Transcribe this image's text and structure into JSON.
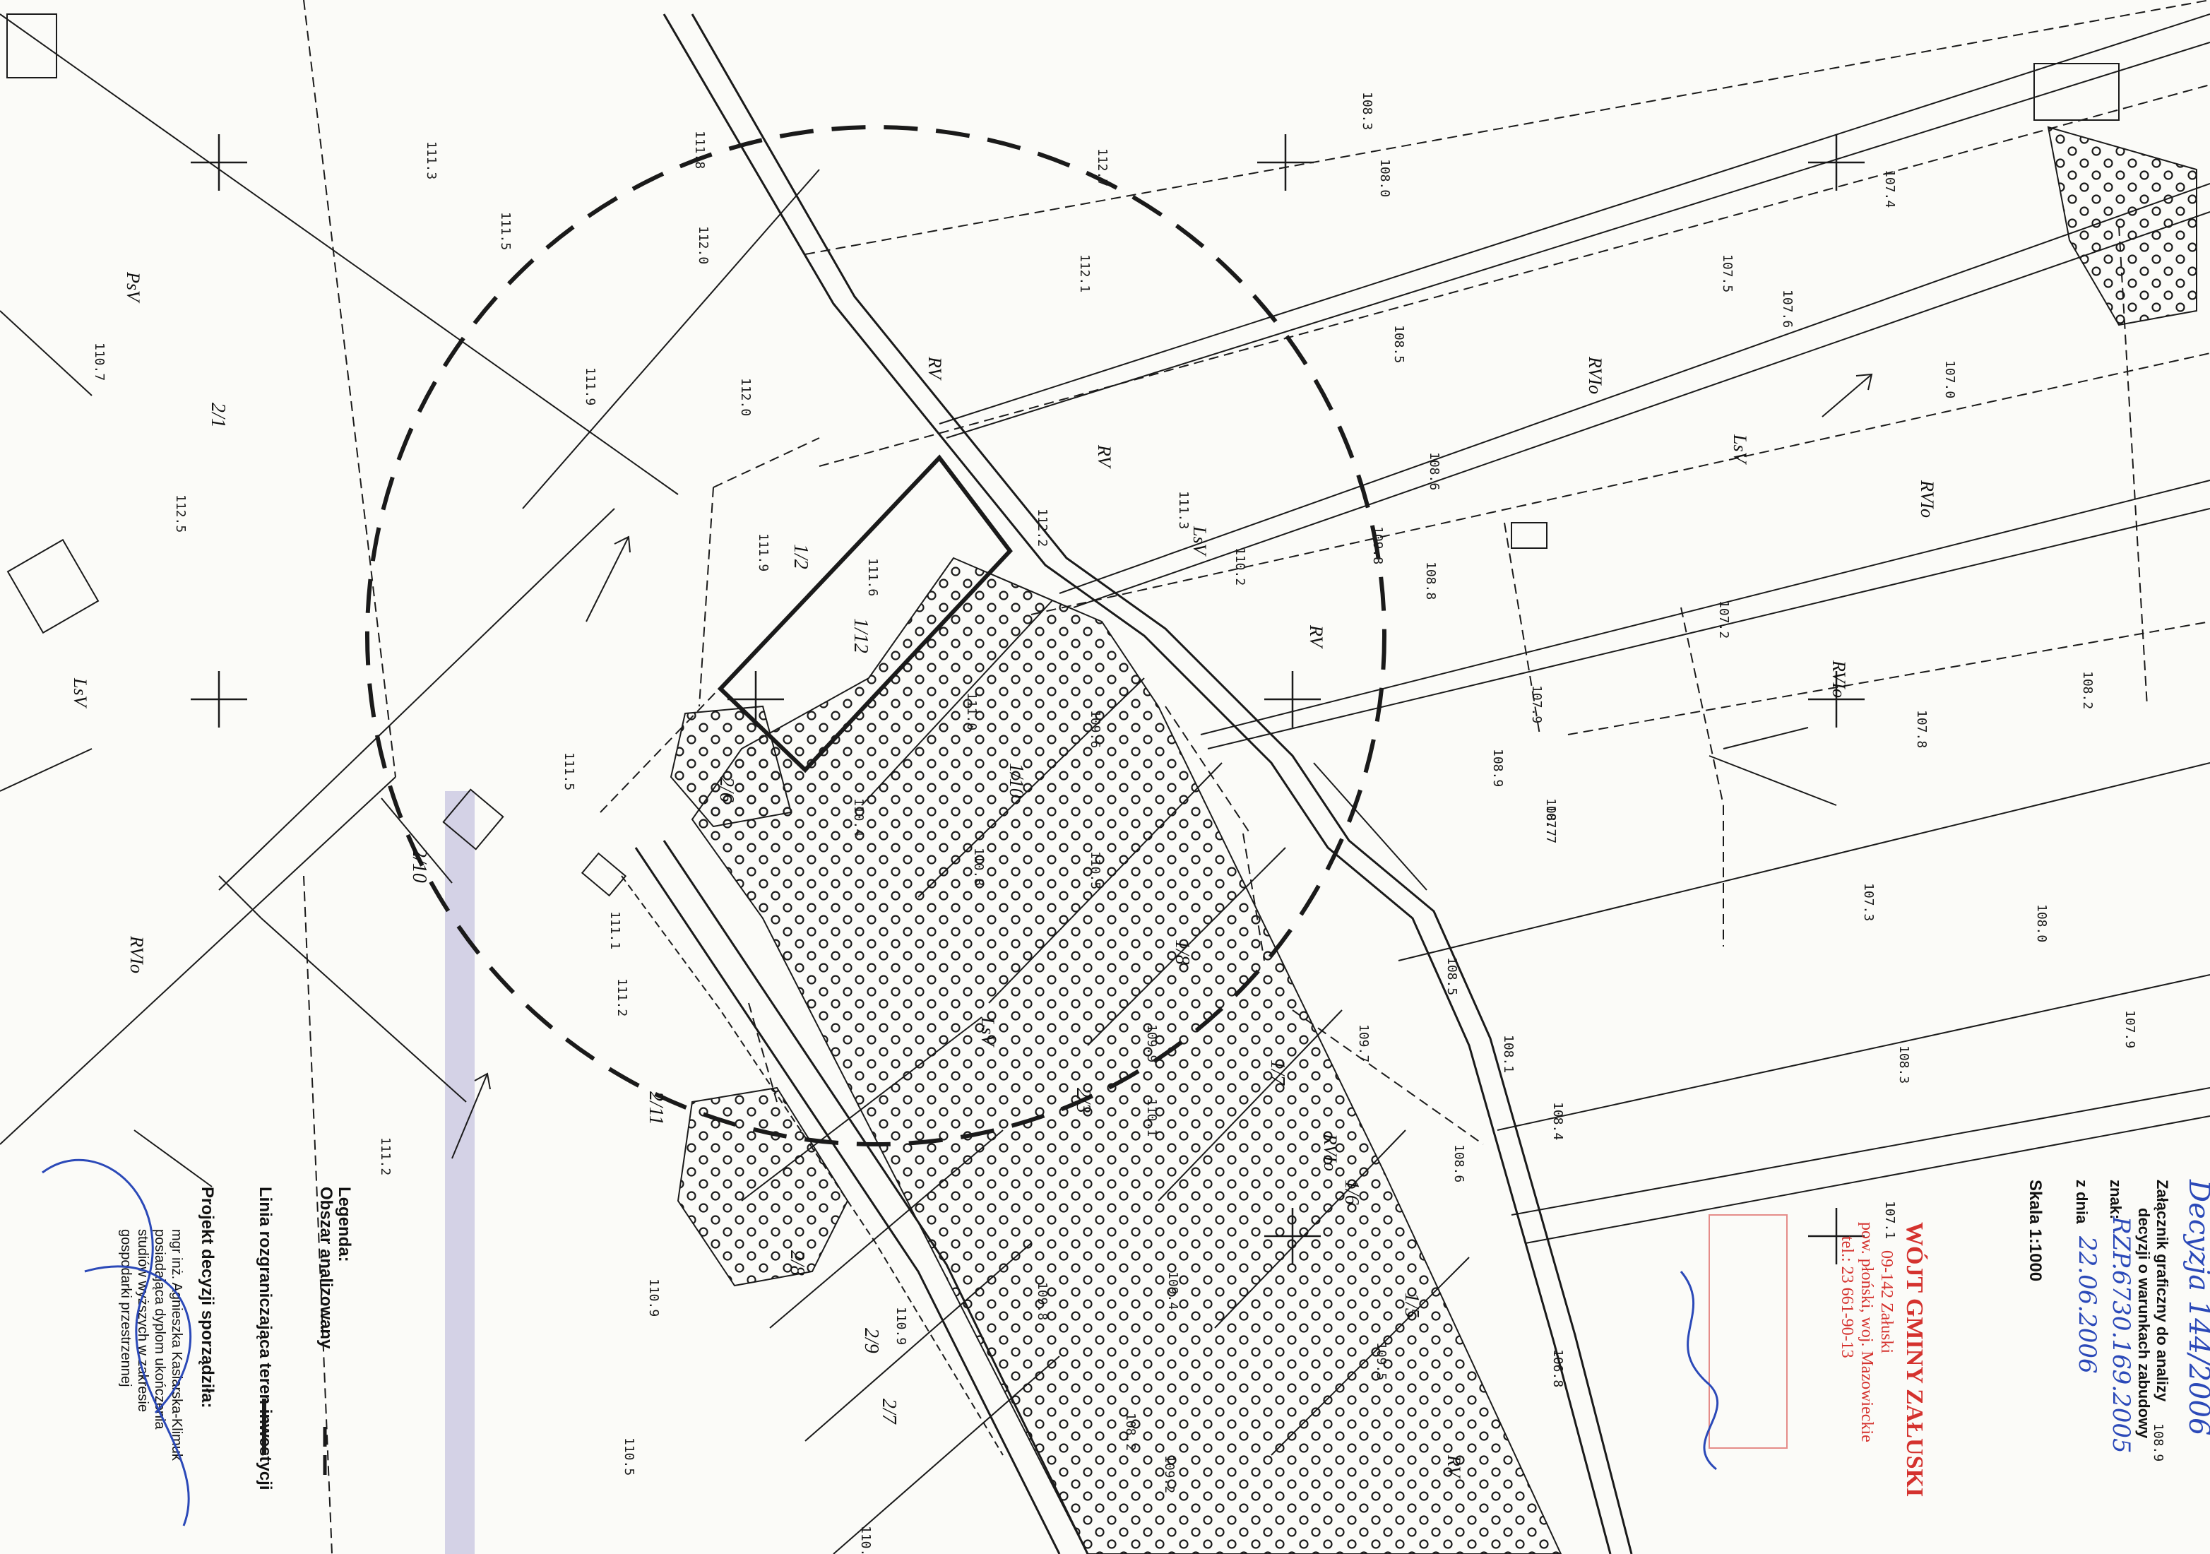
{
  "colors": {
    "ink": "#1a1a1a",
    "paper": "#fbfbf8",
    "handwriting": "#2b49b8",
    "stamp": "#d4322e",
    "scan_streak": "#8b86c7"
  },
  "header": {
    "decision_no": "Decyzja 144/2006",
    "attachment_line": "Załącznik graficzny do analizy",
    "decision_line": "decyzji o warunkach zabudowy",
    "sign_label": "znak:",
    "sign_value": "RZP.6730.169.2005",
    "date_label": "z dnia",
    "date_value": "22.06.2006",
    "scale": "Skala 1:1000"
  },
  "stamp": {
    "title": "WÓJT GMINY ZAŁUSKI",
    "line1": "09-142 Załuski",
    "line2": "pow. płoński, woj. Mazowieckie",
    "line3": "tel.: 23 661-90-13"
  },
  "legend": {
    "title": "Legenda:",
    "item1": "Obszar analizowany",
    "item2": "Linia rozgraniczająca teren inwestycji",
    "project_label": "Projekt decyzji sporządziła:",
    "author1": "mgr inż. Agnieszka Kasiarska-Klimuk",
    "author2": "posiadająca dyplom ukończenia",
    "author3": "studiów wyższych w zakresie",
    "author4": "gospodarki przestrzennej"
  },
  "map": {
    "parcels": [
      {
        "id": "2/1"
      },
      {
        "id": "2/10"
      },
      {
        "id": "1/2"
      },
      {
        "id": "1/12"
      },
      {
        "id": "2/6"
      },
      {
        "id": "1/10"
      },
      {
        "id": "1/8"
      },
      {
        "id": "1/7"
      },
      {
        "id": "1/6"
      },
      {
        "id": "1/5"
      },
      {
        "id": "2/3"
      },
      {
        "id": "2/8"
      },
      {
        "id": "2/9"
      },
      {
        "id": "2/7"
      },
      {
        "id": "2/11"
      }
    ],
    "land_use": [
      {
        "text": "RV"
      },
      {
        "text": "RV"
      },
      {
        "text": "LsV"
      },
      {
        "text": "RV"
      },
      {
        "text": "RVIo"
      },
      {
        "text": "LsV"
      },
      {
        "text": "RVIo"
      },
      {
        "text": "LsV"
      },
      {
        "text": "RVIo"
      },
      {
        "text": "PsV"
      },
      {
        "text": "RVIo"
      },
      {
        "text": "LsV"
      },
      {
        "text": "RV"
      },
      {
        "text": "RVIo"
      }
    ],
    "elevations": [
      {
        "v": "111.9"
      },
      {
        "v": "112.0"
      },
      {
        "v": "111.9"
      },
      {
        "v": "112.0"
      },
      {
        "v": "111.5"
      },
      {
        "v": "111.3"
      },
      {
        "v": "111.8"
      },
      {
        "v": "112.7"
      },
      {
        "v": "112.2"
      },
      {
        "v": "111.6"
      },
      {
        "v": "111.5"
      },
      {
        "v": "111.2"
      },
      {
        "v": "112.5"
      },
      {
        "v": "110.7"
      },
      {
        "v": "111.1"
      },
      {
        "v": "111.2"
      },
      {
        "v": "110.9"
      },
      {
        "v": "110.5"
      },
      {
        "v": "109.8"
      },
      {
        "v": "109.5"
      },
      {
        "v": "108.6"
      },
      {
        "v": "108.5"
      },
      {
        "v": "108.3"
      },
      {
        "v": "108.0"
      },
      {
        "v": "108.8"
      },
      {
        "v": "108.9"
      },
      {
        "v": "108.5"
      },
      {
        "v": "108.6"
      },
      {
        "v": "108.1"
      },
      {
        "v": "108.4"
      },
      {
        "v": "108.7"
      },
      {
        "v": "107.6"
      },
      {
        "v": "107.9"
      },
      {
        "v": "107.7"
      },
      {
        "v": "107.2"
      },
      {
        "v": "107.5"
      },
      {
        "v": "107.4"
      },
      {
        "v": "107.0"
      },
      {
        "v": "107.8"
      },
      {
        "v": "107.3"
      },
      {
        "v": "108.2"
      },
      {
        "v": "108.0"
      },
      {
        "v": "107.9"
      },
      {
        "v": "108.3"
      },
      {
        "v": "110.9"
      },
      {
        "v": "110.8"
      },
      {
        "v": "110.5"
      },
      {
        "v": "109.6"
      },
      {
        "v": "109.8"
      },
      {
        "v": "109.9"
      },
      {
        "v": "110.2"
      },
      {
        "v": "111.3"
      },
      {
        "v": "112.1"
      },
      {
        "v": "111.0"
      },
      {
        "v": "110.1"
      },
      {
        "v": "109.2"
      },
      {
        "v": "109.7"
      },
      {
        "v": "108.2"
      },
      {
        "v": "110.8"
      },
      {
        "v": "110.4"
      },
      {
        "v": "109.4"
      },
      {
        "v": "107.1"
      },
      {
        "v": "106.8"
      },
      {
        "v": "108.9"
      }
    ]
  }
}
